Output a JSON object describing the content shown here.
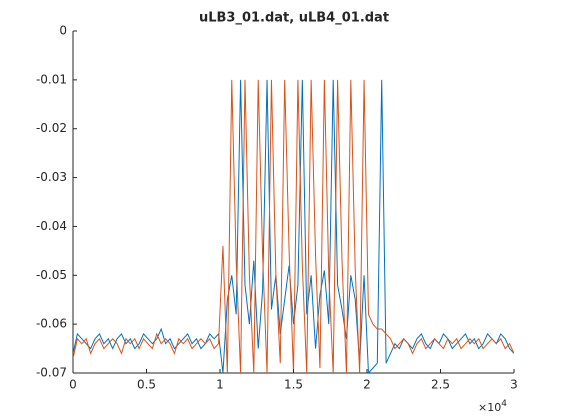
{
  "chart_data": {
    "type": "line",
    "title": "uLB3_01.dat, uLB4_01.dat",
    "x_exponent": {
      "base": "×10",
      "power": "4"
    },
    "xlim": [
      0,
      30000
    ],
    "xticks": [
      0,
      {
        "value": 5000,
        "label": "0.5"
      },
      {
        "value": 10000,
        "label": "1"
      },
      {
        "value": 15000,
        "label": "1.5"
      },
      {
        "value": 20000,
        "label": "2"
      },
      {
        "value": 25000,
        "label": "2.5"
      },
      {
        "value": 30000,
        "label": "3"
      }
    ],
    "ylim": [
      -0.07,
      0
    ],
    "yticks": [
      0,
      -0.01,
      -0.02,
      -0.03,
      -0.04,
      -0.05,
      -0.06,
      -0.07
    ],
    "x": [
      0,
      300,
      600,
      900,
      1200,
      1500,
      1800,
      2100,
      2400,
      2700,
      3000,
      3300,
      3600,
      3900,
      4200,
      4500,
      4800,
      5100,
      5400,
      5700,
      6000,
      6300,
      6600,
      6900,
      7200,
      7500,
      7800,
      8100,
      8400,
      8700,
      9000,
      9300,
      9600,
      9900,
      10200,
      10500,
      10800,
      11100,
      11400,
      11700,
      12000,
      12300,
      12600,
      12900,
      13200,
      13500,
      13800,
      14100,
      14400,
      14700,
      15000,
      15300,
      15600,
      15900,
      16200,
      16500,
      16800,
      17100,
      17400,
      17700,
      18000,
      18300,
      18600,
      18900,
      19200,
      19500,
      19800,
      20100,
      20400,
      20700,
      21000,
      21300,
      21600,
      21900,
      22200,
      22500,
      22800,
      23100,
      23400,
      23700,
      24000,
      24300,
      24600,
      24900,
      25200,
      25500,
      25800,
      26100,
      26400,
      26700,
      27000,
      27300,
      27600,
      27900,
      28200,
      28500,
      28800,
      29100,
      29400,
      29700,
      30000
    ],
    "series": [
      {
        "color": "#0072bd",
        "values": [
          -0.066,
          -0.062,
          -0.063,
          -0.064,
          -0.065,
          -0.063,
          -0.062,
          -0.064,
          -0.063,
          -0.065,
          -0.063,
          -0.062,
          -0.064,
          -0.063,
          -0.065,
          -0.064,
          -0.062,
          -0.063,
          -0.064,
          -0.063,
          -0.061,
          -0.064,
          -0.063,
          -0.065,
          -0.064,
          -0.063,
          -0.062,
          -0.064,
          -0.063,
          -0.065,
          -0.064,
          -0.062,
          -0.063,
          -0.062,
          -0.07,
          -0.055,
          -0.05,
          -0.058,
          -0.01,
          -0.052,
          -0.06,
          -0.047,
          -0.065,
          -0.053,
          -0.01,
          -0.057,
          -0.05,
          -0.062,
          -0.055,
          -0.048,
          -0.06,
          -0.052,
          -0.01,
          -0.058,
          -0.05,
          -0.065,
          -0.054,
          -0.049,
          -0.06,
          -0.01,
          -0.052,
          -0.057,
          -0.063,
          -0.05,
          -0.055,
          -0.068,
          -0.05,
          -0.07,
          -0.069,
          -0.068,
          -0.01,
          -0.068,
          -0.066,
          -0.064,
          -0.065,
          -0.063,
          -0.064,
          -0.065,
          -0.063,
          -0.062,
          -0.064,
          -0.065,
          -0.063,
          -0.064,
          -0.062,
          -0.063,
          -0.065,
          -0.064,
          -0.063,
          -0.062,
          -0.064,
          -0.063,
          -0.065,
          -0.064,
          -0.062,
          -0.063,
          -0.064,
          -0.062,
          -0.063,
          -0.065,
          -0.066
        ]
      },
      {
        "color": "#d95319",
        "values": [
          -0.067,
          -0.063,
          -0.064,
          -0.063,
          -0.066,
          -0.064,
          -0.063,
          -0.065,
          -0.064,
          -0.063,
          -0.064,
          -0.066,
          -0.063,
          -0.064,
          -0.063,
          -0.065,
          -0.063,
          -0.064,
          -0.065,
          -0.062,
          -0.064,
          -0.063,
          -0.064,
          -0.066,
          -0.063,
          -0.064,
          -0.063,
          -0.065,
          -0.064,
          -0.063,
          -0.064,
          -0.063,
          -0.065,
          -0.064,
          -0.044,
          -0.07,
          -0.01,
          -0.047,
          -0.07,
          -0.01,
          -0.05,
          -0.07,
          -0.01,
          -0.046,
          -0.07,
          -0.01,
          -0.05,
          -0.068,
          -0.01,
          -0.045,
          -0.07,
          -0.01,
          -0.048,
          -0.07,
          -0.01,
          -0.046,
          -0.069,
          -0.01,
          -0.05,
          -0.07,
          -0.01,
          -0.047,
          -0.07,
          -0.01,
          -0.049,
          -0.07,
          -0.01,
          -0.058,
          -0.06,
          -0.061,
          -0.061,
          -0.062,
          -0.063,
          -0.065,
          -0.064,
          -0.063,
          -0.064,
          -0.066,
          -0.064,
          -0.063,
          -0.065,
          -0.064,
          -0.063,
          -0.064,
          -0.065,
          -0.063,
          -0.064,
          -0.063,
          -0.065,
          -0.064,
          -0.063,
          -0.064,
          -0.063,
          -0.065,
          -0.064,
          -0.063,
          -0.064,
          -0.063,
          -0.065,
          -0.064,
          -0.066
        ]
      }
    ]
  }
}
